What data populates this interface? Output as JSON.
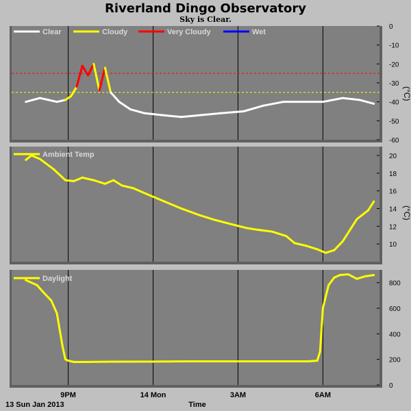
{
  "header": {
    "title": "Riverland Dingo Observatory",
    "subtitle": "Sky is Clear."
  },
  "footer": {
    "date_label": "13 Sun Jan 2013",
    "xlabel": "Time"
  },
  "colors": {
    "background": "#c0c0c0",
    "plot_bg": "#808080",
    "grid": "#000000",
    "clear": "#ffffff",
    "cloudy": "#ffff00",
    "very_cloudy": "#ff0000",
    "wet": "#0000ff"
  },
  "x_axis": {
    "ticks": [
      "9PM",
      "14 Mon",
      "3AM",
      "6AM"
    ]
  },
  "chart_data": [
    {
      "type": "line",
      "name": "sky-temperature",
      "legend": [
        "Clear",
        "Cloudy",
        "Very Cloudy",
        "Wet"
      ],
      "ylabel": "(°C)",
      "ylim": [
        -60,
        0
      ],
      "yticks": [
        "0",
        "-10",
        "-20",
        "-30",
        "-40",
        "-50",
        "-60"
      ],
      "thresholds": [
        {
          "value": -25,
          "color": "#ff0000"
        },
        {
          "value": -35,
          "color": "#ffff00"
        }
      ],
      "x_hours": [
        19.5,
        20.0,
        20.3,
        20.6,
        20.9,
        21.1,
        21.3,
        21.5,
        21.7,
        21.9,
        22.1,
        22.3,
        22.5,
        22.8,
        23.2,
        23.7,
        24.3,
        25.0,
        25.7,
        26.4,
        27.2,
        27.9,
        28.6,
        29.3,
        30.0,
        30.7,
        31.3,
        31.8
      ],
      "y": [
        -40,
        -38,
        -39,
        -40,
        -39,
        -37,
        -32,
        -21,
        -26,
        -20,
        -34,
        -22,
        -35,
        -40,
        -44,
        -46,
        -47,
        -48,
        -47,
        -46,
        -45,
        -42,
        -40,
        -40,
        -40,
        -38,
        -39,
        -41
      ],
      "state": [
        "clear",
        "clear",
        "clear",
        "clear",
        "clear",
        "cloudy",
        "cloudy",
        "very_cloudy",
        "very_cloudy",
        "very_cloudy",
        "cloudy",
        "very_cloudy",
        "cloudy",
        "clear",
        "clear",
        "clear",
        "clear",
        "clear",
        "clear",
        "clear",
        "clear",
        "clear",
        "clear",
        "clear",
        "clear",
        "clear",
        "clear",
        "clear"
      ]
    },
    {
      "type": "line",
      "name": "ambient-temperature",
      "legend": [
        "Ambient Temp"
      ],
      "ylabel": "(°C)",
      "ylim": [
        8,
        21
      ],
      "yticks": [
        "20",
        "18",
        "16",
        "14",
        "12",
        "10"
      ],
      "x_hours": [
        19.5,
        19.7,
        20.0,
        20.5,
        20.9,
        21.2,
        21.5,
        21.9,
        22.3,
        22.6,
        22.9,
        23.3,
        23.8,
        24.4,
        25.0,
        25.6,
        26.2,
        26.8,
        27.3,
        27.7,
        28.2,
        28.7,
        29.0,
        29.4,
        29.8,
        30.1,
        30.4,
        30.7,
        31.2,
        31.6,
        31.8
      ],
      "y": [
        19.5,
        20.0,
        19.6,
        18.4,
        17.2,
        17.1,
        17.5,
        17.2,
        16.8,
        17.2,
        16.6,
        16.3,
        15.6,
        14.8,
        14.0,
        13.3,
        12.7,
        12.2,
        11.8,
        11.6,
        11.4,
        10.9,
        10.1,
        9.8,
        9.4,
        9.0,
        9.3,
        10.3,
        12.8,
        13.8,
        14.8
      ]
    },
    {
      "type": "line",
      "name": "daylight",
      "legend": [
        "Daylight"
      ],
      "ylabel": "",
      "ylim": [
        0,
        900
      ],
      "yticks": [
        "800",
        "600",
        "400",
        "200",
        "0"
      ],
      "x_hours": [
        19.5,
        19.7,
        19.9,
        20.1,
        20.4,
        20.6,
        20.8,
        20.9,
        21.0,
        21.2,
        21.6,
        22.5,
        24.0,
        25.5,
        27.0,
        28.5,
        29.5,
        29.8,
        29.9,
        30.0,
        30.2,
        30.4,
        30.6,
        30.9,
        31.2,
        31.5,
        31.8
      ],
      "y": [
        820,
        800,
        780,
        730,
        660,
        560,
        300,
        200,
        190,
        180,
        180,
        182,
        183,
        185,
        185,
        185,
        185,
        190,
        260,
        600,
        780,
        840,
        860,
        865,
        830,
        850,
        860
      ]
    }
  ]
}
